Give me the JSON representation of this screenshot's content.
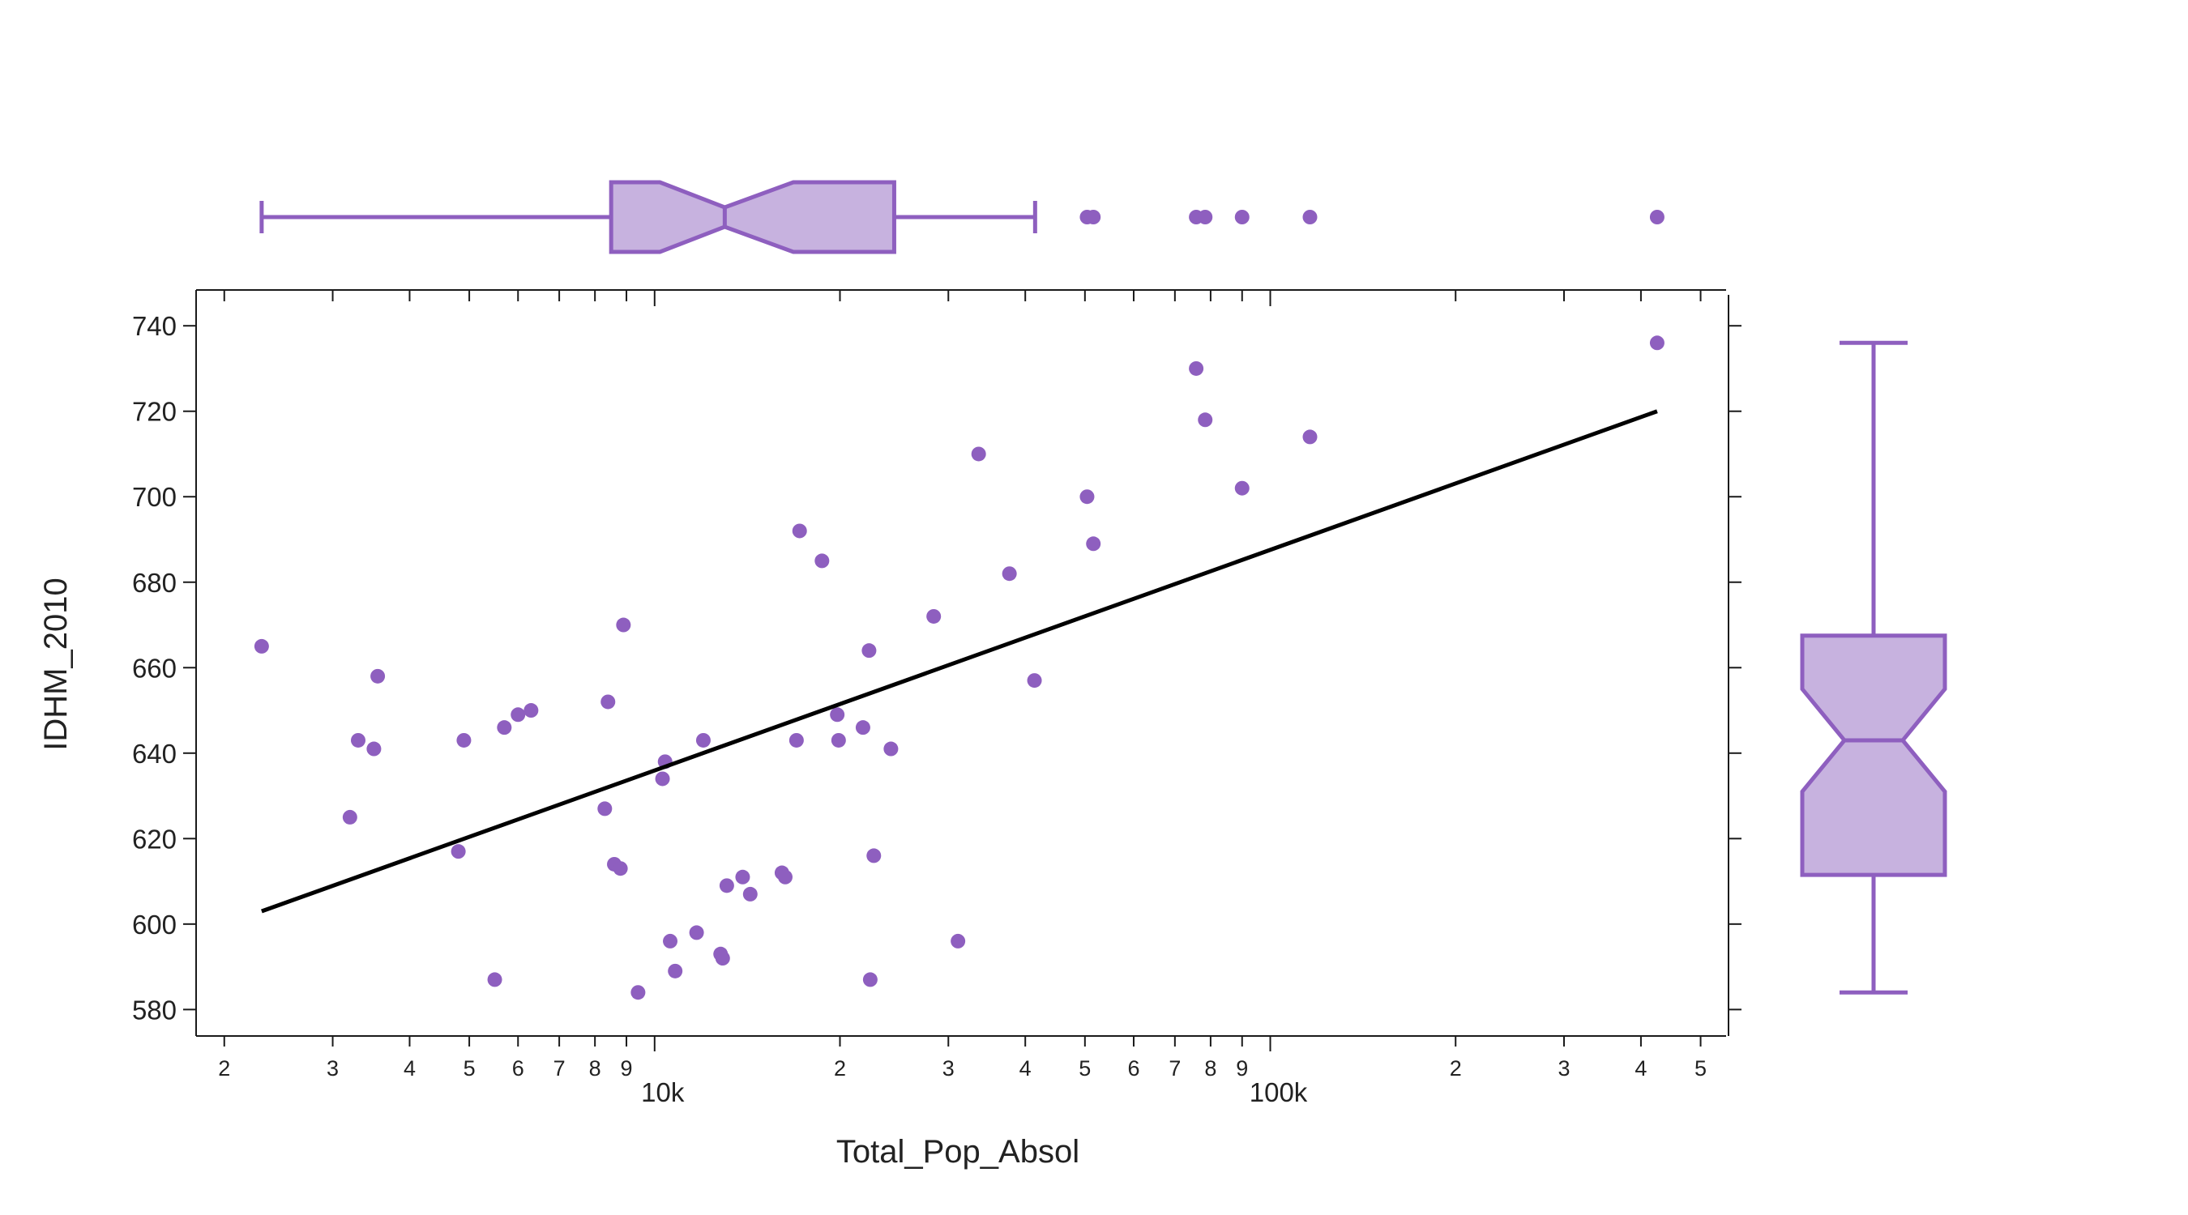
{
  "chart_data": {
    "type": "scatter",
    "xlabel": "Total_Pop_Absol",
    "ylabel": "IDHM_2010",
    "x_scale": "log",
    "xlim": [
      1800,
      550000
    ],
    "ylim": [
      574,
      748
    ],
    "y_ticks": [
      580,
      600,
      620,
      640,
      660,
      680,
      700,
      720,
      740
    ],
    "x_major_ticks": [
      {
        "value": 10000,
        "label": "10k"
      },
      {
        "value": 100000,
        "label": "100k"
      }
    ],
    "x_minor_ticks": [
      {
        "value": 2000,
        "label": "2"
      },
      {
        "value": 3000,
        "label": "3"
      },
      {
        "value": 4000,
        "label": "4"
      },
      {
        "value": 5000,
        "label": "5"
      },
      {
        "value": 6000,
        "label": "6"
      },
      {
        "value": 7000,
        "label": "7"
      },
      {
        "value": 8000,
        "label": "8"
      },
      {
        "value": 9000,
        "label": "9"
      },
      {
        "value": 20000,
        "label": "2"
      },
      {
        "value": 30000,
        "label": "3"
      },
      {
        "value": 40000,
        "label": "4"
      },
      {
        "value": 50000,
        "label": "5"
      },
      {
        "value": 60000,
        "label": "6"
      },
      {
        "value": 70000,
        "label": "7"
      },
      {
        "value": 80000,
        "label": "8"
      },
      {
        "value": 90000,
        "label": "9"
      },
      {
        "value": 200000,
        "label": "2"
      },
      {
        "value": 300000,
        "label": "3"
      },
      {
        "value": 400000,
        "label": "4"
      },
      {
        "value": 500000,
        "label": "5"
      }
    ],
    "color": "#8e5fbf",
    "box_fill": "#c7b2df",
    "trendline": {
      "x": [
        2300,
        425000
      ],
      "y": [
        603,
        720
      ]
    },
    "points": [
      {
        "x": 2300,
        "y": 665
      },
      {
        "x": 3200,
        "y": 625
      },
      {
        "x": 3300,
        "y": 643
      },
      {
        "x": 3500,
        "y": 641
      },
      {
        "x": 3550,
        "y": 658
      },
      {
        "x": 4800,
        "y": 617
      },
      {
        "x": 4900,
        "y": 643
      },
      {
        "x": 5500,
        "y": 587
      },
      {
        "x": 5700,
        "y": 646
      },
      {
        "x": 6000,
        "y": 649
      },
      {
        "x": 6300,
        "y": 650
      },
      {
        "x": 8300,
        "y": 627
      },
      {
        "x": 8400,
        "y": 652
      },
      {
        "x": 8600,
        "y": 614
      },
      {
        "x": 8800,
        "y": 613
      },
      {
        "x": 8900,
        "y": 670
      },
      {
        "x": 9400,
        "y": 584
      },
      {
        "x": 10300,
        "y": 634
      },
      {
        "x": 10400,
        "y": 638
      },
      {
        "x": 10600,
        "y": 596
      },
      {
        "x": 10800,
        "y": 589
      },
      {
        "x": 11700,
        "y": 598
      },
      {
        "x": 12000,
        "y": 643
      },
      {
        "x": 12800,
        "y": 593
      },
      {
        "x": 12900,
        "y": 592
      },
      {
        "x": 13100,
        "y": 609
      },
      {
        "x": 13900,
        "y": 611
      },
      {
        "x": 14300,
        "y": 607
      },
      {
        "x": 16100,
        "y": 612
      },
      {
        "x": 16300,
        "y": 611
      },
      {
        "x": 17000,
        "y": 643
      },
      {
        "x": 17200,
        "y": 692
      },
      {
        "x": 18700,
        "y": 685
      },
      {
        "x": 19800,
        "y": 649
      },
      {
        "x": 19900,
        "y": 643
      },
      {
        "x": 21800,
        "y": 646
      },
      {
        "x": 22300,
        "y": 664
      },
      {
        "x": 22400,
        "y": 587
      },
      {
        "x": 22700,
        "y": 616
      },
      {
        "x": 24200,
        "y": 641
      },
      {
        "x": 28400,
        "y": 672
      },
      {
        "x": 31100,
        "y": 596
      },
      {
        "x": 33600,
        "y": 710
      },
      {
        "x": 37700,
        "y": 682
      },
      {
        "x": 41400,
        "y": 657
      },
      {
        "x": 50400,
        "y": 700
      },
      {
        "x": 51600,
        "y": 689
      },
      {
        "x": 75800,
        "y": 730
      },
      {
        "x": 78400,
        "y": 718
      },
      {
        "x": 90000,
        "y": 702
      },
      {
        "x": 116000,
        "y": 714
      },
      {
        "x": 425000,
        "y": 736
      }
    ],
    "x_box": {
      "whisker_low": 2300,
      "q1": 8500,
      "median": 13000,
      "q3": 24500,
      "whisker_high": 41500,
      "notch_low": 10200,
      "notch_high": 16800,
      "outliers": [
        50400,
        51600,
        75800,
        78400,
        90000,
        116000,
        425000
      ]
    },
    "y_box": {
      "whisker_low": 584,
      "q1": 611.5,
      "median": 643,
      "q3": 667.5,
      "whisker_high": 736,
      "notch_low": 631,
      "notch_high": 655
    }
  }
}
